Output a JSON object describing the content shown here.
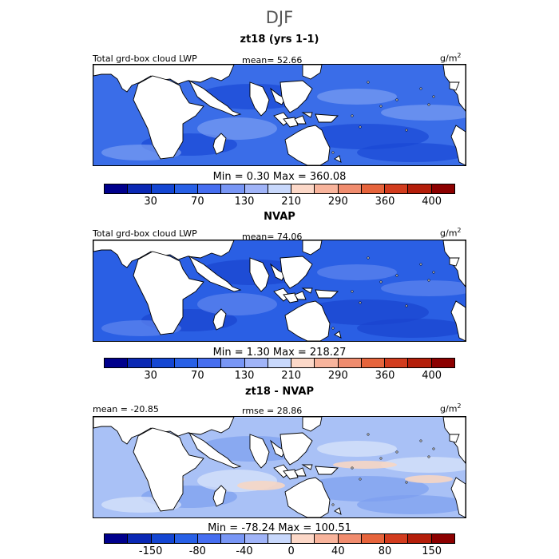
{
  "season": "DJF",
  "units_label": "g/m",
  "units_exp": "2",
  "panels": [
    {
      "title": "zt18 (yrs 1-1)",
      "left_label": "Total grd-box cloud LWP",
      "mid_label": "mean=  52.66",
      "minmax": "Min =   0.30 Max = 360.08",
      "colors": [
        "#00008c",
        "#0a28b4",
        "#1446d2",
        "#2860e6",
        "#466ef0",
        "#7896f5",
        "#a0b4f8",
        "#c8d8fc",
        "#fcd8c8",
        "#f8b49c",
        "#f08c6e",
        "#e6643c",
        "#d23c1e",
        "#b41e0a",
        "#8c0000"
      ],
      "ticks": [
        {
          "label": "30",
          "pos": 2
        },
        {
          "label": "70",
          "pos": 4
        },
        {
          "label": "130",
          "pos": 6
        },
        {
          "label": "210",
          "pos": 8
        },
        {
          "label": "290",
          "pos": 10
        },
        {
          "label": "360",
          "pos": 12
        },
        {
          "label": "400",
          "pos": 14
        }
      ],
      "ocean": "#3a6de8",
      "ocean_dark": "#1a48d6",
      "ocean_light": "#7a9ef2"
    },
    {
      "title": "NVAP",
      "left_label": "Total grd-box cloud LWP",
      "mid_label": "mean=  74.06",
      "minmax": "Min =   1.30 Max = 218.27",
      "colors": [
        "#00008c",
        "#0a28b4",
        "#1446d2",
        "#2860e6",
        "#466ef0",
        "#7896f5",
        "#a0b4f8",
        "#c8d8fc",
        "#fcd8c8",
        "#f8b49c",
        "#f08c6e",
        "#e6643c",
        "#d23c1e",
        "#b41e0a",
        "#8c0000"
      ],
      "ticks": [
        {
          "label": "30",
          "pos": 2
        },
        {
          "label": "70",
          "pos": 4
        },
        {
          "label": "130",
          "pos": 6
        },
        {
          "label": "210",
          "pos": 8
        },
        {
          "label": "290",
          "pos": 10
        },
        {
          "label": "360",
          "pos": 12
        },
        {
          "label": "400",
          "pos": 14
        }
      ],
      "ocean": "#2a5fe4",
      "ocean_dark": "#1a44cf",
      "ocean_light": "#5f86ee"
    },
    {
      "title": "zt18 - NVAP",
      "left_label": "mean = -20.85",
      "mid_label": "rmse =  28.86",
      "minmax": "Min = -78.24 Max = 100.51",
      "colors": [
        "#00008c",
        "#0a28b4",
        "#1446d2",
        "#2860e6",
        "#466ef0",
        "#7896f5",
        "#a0b4f8",
        "#c8d8fc",
        "#fcd8c8",
        "#f8b49c",
        "#f08c6e",
        "#e6643c",
        "#d23c1e",
        "#b41e0a",
        "#8c0000"
      ],
      "ticks": [
        {
          "label": "-150",
          "pos": 2
        },
        {
          "label": "-80",
          "pos": 4
        },
        {
          "label": "-40",
          "pos": 6
        },
        {
          "label": "0",
          "pos": 8
        },
        {
          "label": "40",
          "pos": 10
        },
        {
          "label": "80",
          "pos": 12
        },
        {
          "label": "150",
          "pos": 14
        }
      ],
      "ocean": "#a9c1f6",
      "ocean_dark": "#7c9ef0",
      "ocean_light": "#dbe6fb"
    }
  ]
}
